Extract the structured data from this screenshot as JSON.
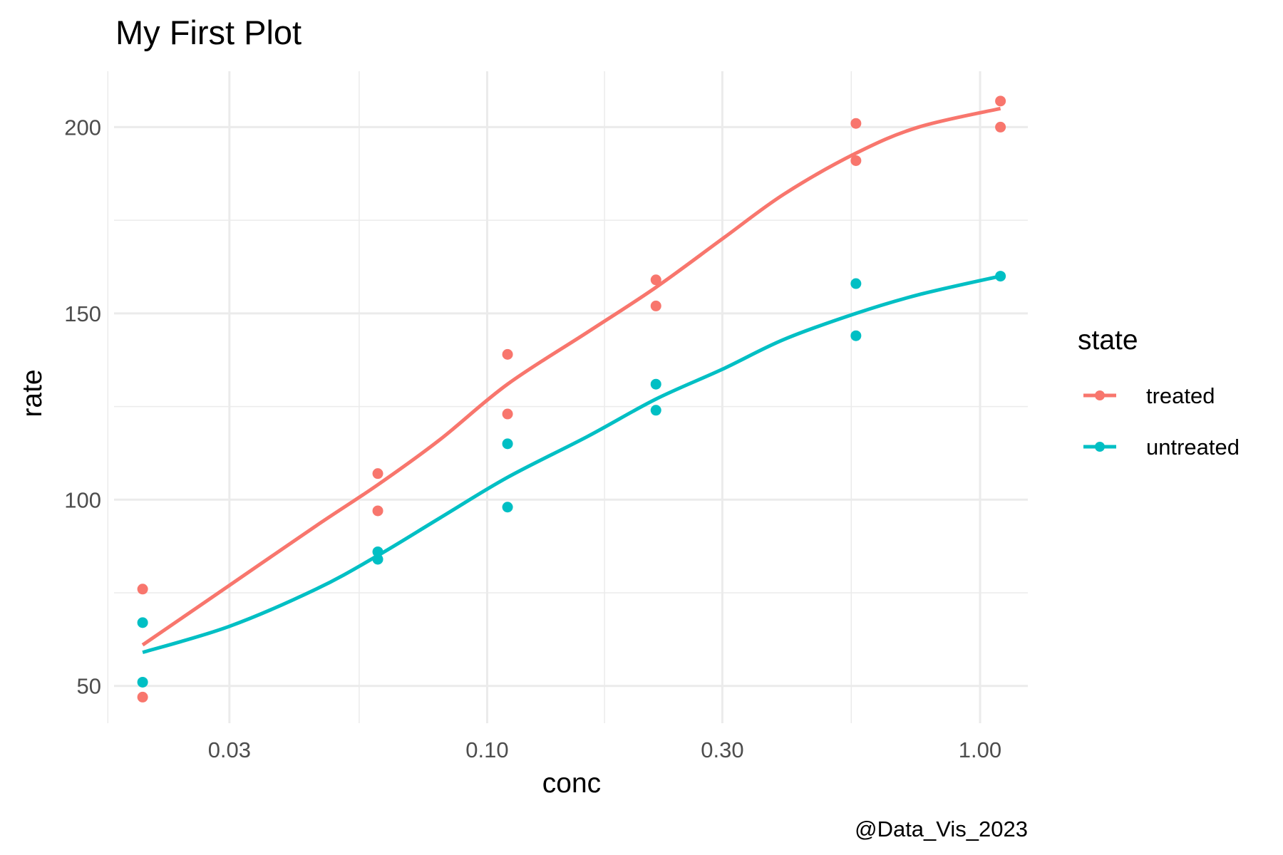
{
  "chart_data": {
    "type": "scatter",
    "title": "My First Plot",
    "xlabel": "conc",
    "ylabel": "rate",
    "caption": "@Data_Vis_2023",
    "x_scale": "log10",
    "xlim": [
      0.0175,
      1.25
    ],
    "ylim": [
      40,
      215
    ],
    "x_ticks": [
      0.03,
      0.1,
      0.3,
      1.0
    ],
    "x_tick_labels": [
      "0.03",
      "0.10",
      "0.30",
      "1.00"
    ],
    "x_minor_ticks": [
      0.017,
      0.055,
      0.173,
      0.548
    ],
    "y_ticks": [
      50,
      100,
      150,
      200
    ],
    "y_tick_labels": [
      "50",
      "100",
      "150",
      "200"
    ],
    "y_minor_ticks": [
      75,
      125,
      175
    ],
    "legend": {
      "title": "state",
      "position": "right",
      "entries": [
        "treated",
        "untreated"
      ]
    },
    "series": [
      {
        "name": "treated",
        "color": "#F8766D",
        "points": [
          [
            0.02,
            76
          ],
          [
            0.02,
            47
          ],
          [
            0.06,
            97
          ],
          [
            0.06,
            107
          ],
          [
            0.11,
            123
          ],
          [
            0.11,
            139
          ],
          [
            0.22,
            159
          ],
          [
            0.22,
            152
          ],
          [
            0.56,
            191
          ],
          [
            0.56,
            201
          ],
          [
            1.1,
            207
          ],
          [
            1.1,
            200
          ]
        ],
        "smooth": [
          [
            0.02,
            61
          ],
          [
            0.03,
            77
          ],
          [
            0.045,
            93
          ],
          [
            0.06,
            104
          ],
          [
            0.08,
            116
          ],
          [
            0.11,
            131
          ],
          [
            0.16,
            145
          ],
          [
            0.22,
            157
          ],
          [
            0.3,
            170
          ],
          [
            0.4,
            182
          ],
          [
            0.56,
            193
          ],
          [
            0.75,
            200
          ],
          [
            1.1,
            205
          ]
        ]
      },
      {
        "name": "untreated",
        "color": "#00BFC4",
        "points": [
          [
            0.02,
            67
          ],
          [
            0.02,
            51
          ],
          [
            0.06,
            84
          ],
          [
            0.06,
            86
          ],
          [
            0.11,
            98
          ],
          [
            0.11,
            115
          ],
          [
            0.22,
            131
          ],
          [
            0.22,
            124
          ],
          [
            0.56,
            144
          ],
          [
            0.56,
            158
          ],
          [
            1.1,
            160
          ]
        ],
        "smooth": [
          [
            0.02,
            59
          ],
          [
            0.03,
            66
          ],
          [
            0.045,
            76
          ],
          [
            0.06,
            85
          ],
          [
            0.08,
            95
          ],
          [
            0.11,
            106
          ],
          [
            0.16,
            117
          ],
          [
            0.22,
            127
          ],
          [
            0.3,
            135
          ],
          [
            0.4,
            143
          ],
          [
            0.56,
            150
          ],
          [
            0.75,
            155
          ],
          [
            1.1,
            160
          ]
        ]
      }
    ]
  }
}
